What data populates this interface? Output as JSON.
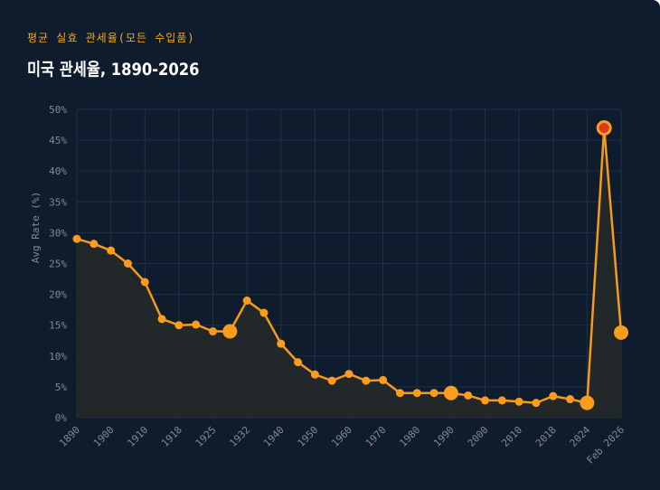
{
  "header": {
    "eyebrow": "평균 실효 관세율(모든 수입품)",
    "title": "미국 관세율, 1890-2026"
  },
  "colors": {
    "background": "#0f1c2e",
    "line": "#f59a1a",
    "point": "#fb9c1c",
    "highlight_fill": "#d93a25",
    "grid": "#1f3044",
    "area": "#262a29"
  },
  "chart_data": {
    "type": "line",
    "ylabel": "Avg Rate (%)",
    "xlabel": "",
    "ylim": [
      0,
      50
    ],
    "y_ticks": [
      "0%",
      "5%",
      "10%",
      "15%",
      "20%",
      "25%",
      "30%",
      "35%",
      "40%",
      "45%",
      "50%"
    ],
    "x_tick_labels": [
      "1890",
      "1900",
      "1910",
      "1918",
      "1925",
      "1932",
      "1940",
      "1950",
      "1960",
      "1970",
      "1980",
      "1990",
      "2000",
      "2010",
      "2018",
      "2024",
      "Feb 2026"
    ],
    "grid": true,
    "series": [
      {
        "values": [
          29,
          28.2,
          27.1,
          25,
          22,
          16,
          15,
          15.1,
          14,
          14,
          19,
          17,
          12,
          9,
          7,
          6,
          7.1,
          6,
          6.1,
          4,
          4,
          4,
          4,
          3.6,
          2.8,
          2.8,
          2.6,
          2.4,
          3.5,
          3,
          2.4,
          47,
          13.8
        ],
        "emphasized_indices": [
          9,
          22,
          30,
          32
        ],
        "highlighted_index": 31
      }
    ]
  }
}
